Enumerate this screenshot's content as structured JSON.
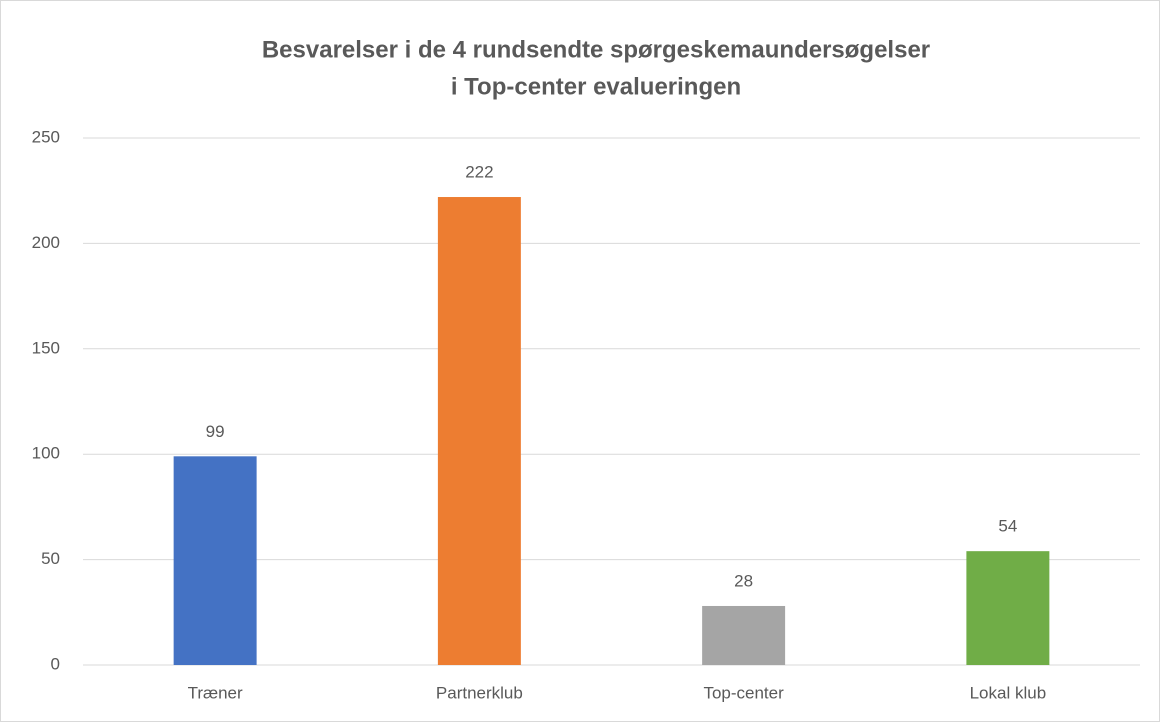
{
  "chart_data": {
    "type": "bar",
    "title": [
      "Besvarelser i de 4 rundsendte spørgeskemaundersøgelser",
      "i Top-center evalueringen"
    ],
    "categories": [
      "Træner",
      "Partnerklub",
      "Top-center",
      "Lokal klub"
    ],
    "values": [
      99,
      222,
      28,
      54
    ],
    "colors": [
      "#4472c4",
      "#ed7d31",
      "#a5a5a5",
      "#70ad47"
    ],
    "ylim": [
      0,
      250
    ],
    "yticks": [
      0,
      50,
      100,
      150,
      200,
      250
    ],
    "grid": true,
    "data_labels": true
  }
}
